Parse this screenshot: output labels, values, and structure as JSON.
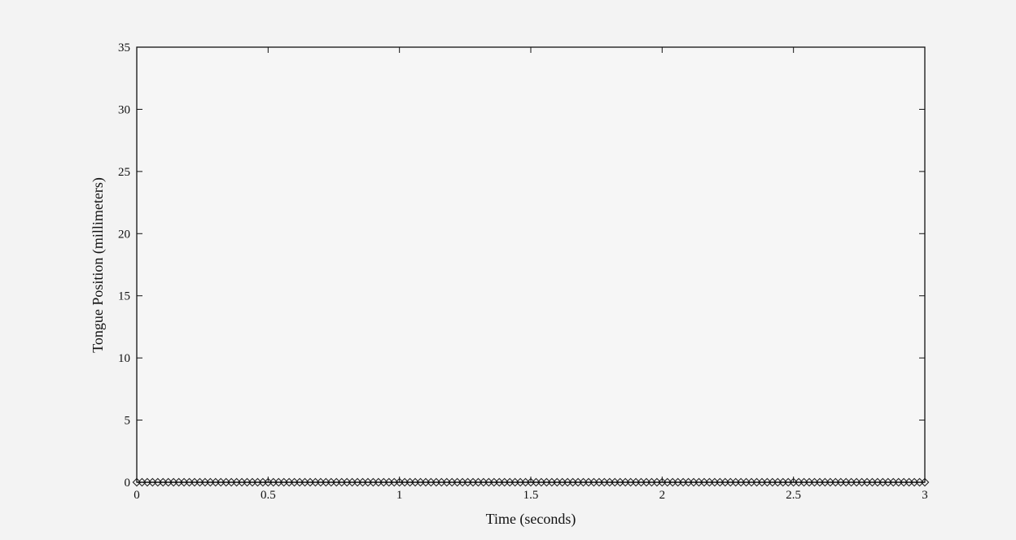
{
  "chart_data": {
    "type": "line",
    "title": "",
    "xlabel": "Time (seconds)",
    "ylabel": "Tongue Position (millimeters)",
    "xlim": [
      0,
      3
    ],
    "ylim": [
      0,
      35
    ],
    "xticks": [
      0,
      0.5,
      1,
      1.5,
      2,
      2.5,
      3
    ],
    "xtick_labels": [
      "0",
      "0.5",
      "1",
      "1.5",
      "2",
      "2.5",
      "3"
    ],
    "yticks": [
      0,
      5,
      10,
      15,
      20,
      25,
      30,
      35
    ],
    "ytick_labels": [
      "0",
      "5",
      "10",
      "15",
      "20",
      "25",
      "30",
      "35"
    ],
    "grid": false,
    "marker": "diamond",
    "series": [
      {
        "name": "",
        "x": [
          0.0,
          0.02,
          0.04,
          0.06,
          0.08,
          0.1,
          0.12,
          0.14,
          0.16,
          0.18,
          0.2,
          0.22,
          0.24,
          0.26,
          0.28,
          0.3,
          0.32,
          0.34,
          0.36,
          0.38,
          0.4,
          0.42,
          0.44,
          0.46,
          0.48,
          0.5,
          0.52,
          0.54,
          0.56,
          0.58,
          0.6,
          0.62,
          0.64,
          0.66,
          0.68,
          0.7,
          0.72,
          0.74,
          0.76,
          0.78,
          0.8,
          0.82,
          0.84,
          0.86,
          0.88,
          0.9,
          0.92,
          0.94,
          0.96,
          0.98,
          1.0,
          1.02,
          1.04,
          1.06,
          1.08,
          1.1,
          1.12,
          1.14,
          1.16,
          1.18,
          1.2,
          1.22,
          1.24,
          1.26,
          1.28,
          1.3,
          1.32,
          1.34,
          1.36,
          1.38,
          1.4,
          1.42,
          1.44,
          1.46,
          1.48,
          1.5,
          1.52,
          1.54,
          1.56,
          1.58,
          1.6,
          1.62,
          1.64,
          1.66,
          1.68,
          1.7,
          1.72,
          1.74,
          1.76,
          1.78,
          1.8,
          1.82,
          1.84,
          1.86,
          1.88,
          1.9,
          1.92,
          1.94,
          1.96,
          1.98,
          2.0,
          2.02,
          2.04,
          2.06,
          2.08,
          2.1,
          2.12,
          2.14,
          2.16,
          2.18,
          2.2,
          2.22,
          2.24,
          2.26,
          2.28,
          2.3,
          2.32,
          2.34,
          2.36,
          2.38,
          2.4,
          2.42,
          2.44,
          2.46,
          2.48,
          2.5,
          2.52,
          2.54,
          2.56,
          2.58,
          2.6,
          2.62,
          2.64,
          2.66,
          2.68,
          2.7,
          2.72,
          2.74,
          2.76,
          2.78,
          2.8,
          2.82,
          2.84,
          2.86,
          2.88,
          2.9,
          2.92,
          2.94,
          2.96,
          2.98,
          3.0
        ],
        "y": [
          0,
          0,
          0,
          0,
          0,
          0,
          0,
          0,
          0,
          0,
          0,
          0,
          0,
          0,
          0,
          0,
          0,
          0,
          0,
          0,
          0,
          0,
          0,
          0,
          0,
          0,
          0,
          0,
          0,
          0,
          0,
          0,
          0,
          0,
          0,
          0,
          0,
          0,
          0,
          0,
          0,
          0,
          0,
          0,
          0,
          0,
          0,
          0,
          0,
          0,
          0,
          0,
          0,
          0,
          0,
          0,
          0,
          0,
          0,
          0,
          0,
          0,
          0,
          0,
          0,
          0,
          0,
          0,
          0,
          0,
          0,
          0,
          0,
          0,
          0,
          0,
          0,
          0,
          0,
          0,
          0,
          0,
          0,
          0,
          0,
          0,
          0,
          0,
          0,
          0,
          0,
          0,
          0,
          0,
          0,
          0,
          0,
          0,
          0,
          0,
          0,
          0,
          0,
          0,
          0,
          0,
          0,
          0,
          0,
          0,
          0,
          0,
          0,
          0,
          0,
          0,
          0,
          0,
          0,
          0,
          0,
          0,
          0,
          0,
          0,
          0,
          0,
          0,
          0,
          0,
          0,
          0,
          0,
          0,
          0,
          0,
          0,
          0,
          0,
          0,
          0,
          0,
          0,
          0,
          0,
          0,
          0,
          0,
          0,
          0,
          0
        ]
      }
    ]
  }
}
